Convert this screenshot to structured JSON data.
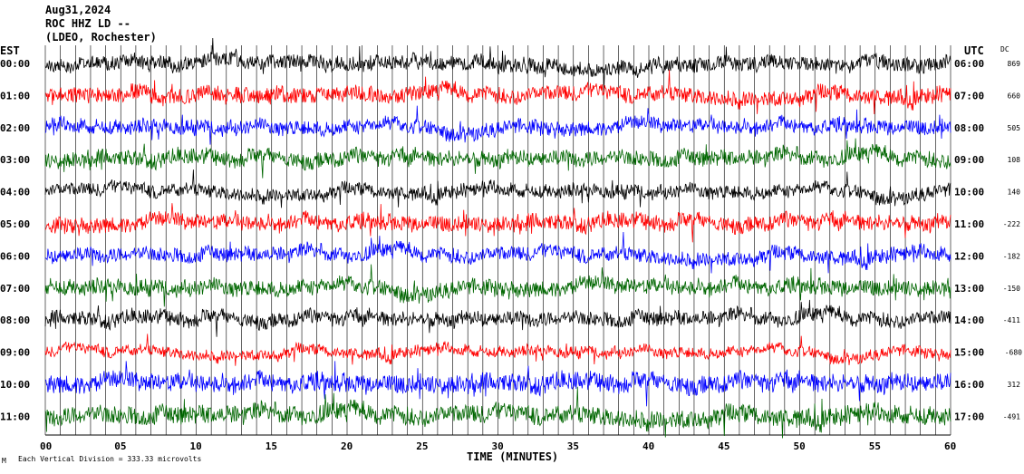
{
  "header": {
    "line1": "Aug31,2024",
    "line2": "ROC HHZ LD --",
    "line3": "(LDEO, Rochester)"
  },
  "left_tz": "EST",
  "right_tz": "UTC",
  "dc_header": "DC",
  "footer": {
    "scale_note": "Each Vertical Division = 333.33 microvolts"
  },
  "chart_data": {
    "type": "line",
    "title": "",
    "xlabel": "TIME (MINUTES)",
    "x_ticks": [
      "00",
      "05",
      "10",
      "15",
      "20",
      "25",
      "30",
      "35",
      "40",
      "45",
      "50",
      "55",
      "60"
    ],
    "x_range": [
      0,
      60
    ],
    "grid": "vertical lines every minute",
    "rows": [
      {
        "est": "00:00",
        "utc": "06:00",
        "dc": "869",
        "color": "#000000",
        "amp": 0.55
      },
      {
        "est": "01:00",
        "utc": "07:00",
        "dc": "660",
        "color": "#ff0000",
        "amp": 0.6
      },
      {
        "est": "02:00",
        "utc": "08:00",
        "dc": "505",
        "color": "#0000ff",
        "amp": 0.55
      },
      {
        "est": "03:00",
        "utc": "09:00",
        "dc": "108",
        "color": "#006600",
        "amp": 0.6
      },
      {
        "est": "04:00",
        "utc": "10:00",
        "dc": "140",
        "color": "#000000",
        "amp": 0.5
      },
      {
        "est": "05:00",
        "utc": "11:00",
        "dc": "-222",
        "color": "#ff0000",
        "amp": 0.6
      },
      {
        "est": "06:00",
        "utc": "12:00",
        "dc": "-182",
        "color": "#0000ff",
        "amp": 0.55
      },
      {
        "est": "07:00",
        "utc": "13:00",
        "dc": "-150",
        "color": "#006600",
        "amp": 0.6
      },
      {
        "est": "08:00",
        "utc": "14:00",
        "dc": "-411",
        "color": "#000000",
        "amp": 0.55
      },
      {
        "est": "09:00",
        "utc": "15:00",
        "dc": "",
        "color": "#ff0000",
        "amp": 0.4
      },
      {
        "est": "10:00",
        "utc": "16:00",
        "dc": "312",
        "color": "#0000ff",
        "amp": 0.7
      },
      {
        "est": "11:00",
        "utc": "17:00",
        "dc": "-491",
        "color": "#006600",
        "amp": 0.7
      }
    ],
    "overlap_label": "-680"
  }
}
